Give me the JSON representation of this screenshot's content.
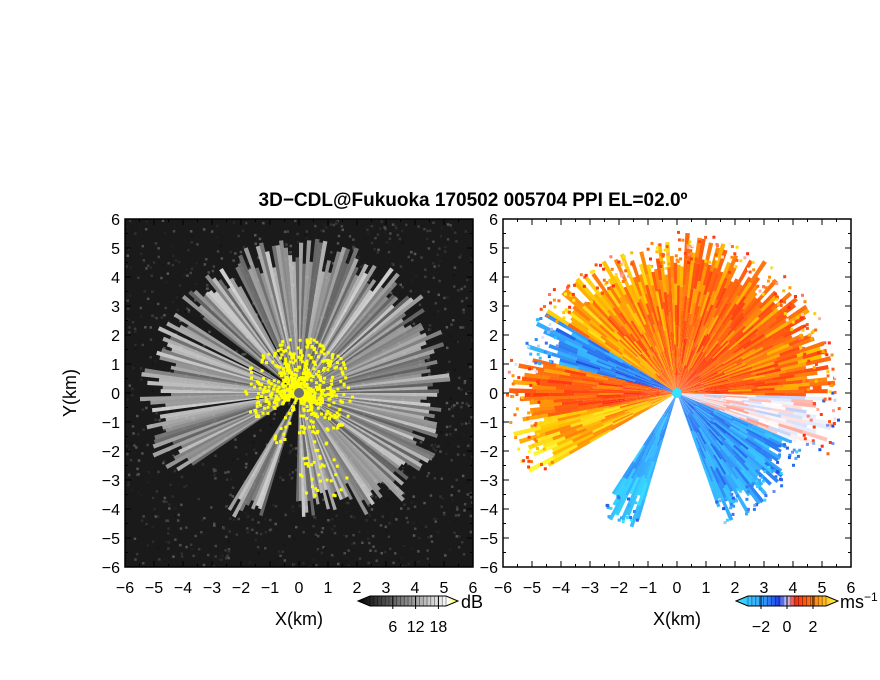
{
  "figure": {
    "title": "3D−CDL@Fukuoka 170502 005704 PPI EL=02.0º"
  },
  "colors": {
    "echo_yellow": "#ffff00",
    "background_left": "#1a1a1a",
    "velocity_negative_dark": "#1f4fe6",
    "velocity_negative_light": "#36b8ff",
    "velocity_zero": "#ffffff",
    "velocity_positive_mid": "#ff6a10",
    "velocity_positive_dark": "#ff2a10",
    "velocity_positive_light": "#ffc800"
  },
  "chart_data": [
    {
      "type": "heatmap",
      "panel": "left",
      "quantity": "reflectivity",
      "xlabel": "X(km)",
      "ylabel": "Y(km)",
      "xlim": [
        -6,
        6
      ],
      "ylim": [
        -6,
        6
      ],
      "xticks": [
        "−6",
        "−5",
        "−4",
        "−3",
        "−2",
        "−1",
        "0",
        "1",
        "2",
        "3",
        "4",
        "5",
        "6"
      ],
      "yticks": [
        "6",
        "5",
        "4",
        "3",
        "2",
        "1",
        "0",
        "−1",
        "−2",
        "−3",
        "−4",
        "−5",
        "−6"
      ],
      "radar_center": [
        0,
        0
      ],
      "colorbar": {
        "unit": "dB",
        "ticks": [
          6,
          12,
          18
        ],
        "tick_labels": [
          "6",
          "12",
          "18"
        ],
        "range": [
          0,
          20
        ],
        "colormap": "gray-to-yellow"
      },
      "sectors": [
        {
          "az_start": 60,
          "az_end": 92,
          "range_km": 5.2
        },
        {
          "az_start": 92,
          "az_end": 150,
          "range_km": 5.0
        },
        {
          "az_start": 150,
          "az_end": 180,
          "range_km": 4.2
        },
        {
          "az_start": 196,
          "az_end": 210,
          "range_km": 4.7
        },
        {
          "az_start": 235,
          "az_end": 260,
          "range_km": 5.3
        },
        {
          "az_start": 262,
          "az_end": 295,
          "range_km": 5.3
        },
        {
          "az_start": 296,
          "az_end": 302,
          "range_km": 5.3
        },
        {
          "az_start": 307,
          "az_end": 330,
          "range_km": 5.0
        },
        {
          "az_start": 332,
          "az_end": 60,
          "range_km": 5.2
        }
      ]
    },
    {
      "type": "heatmap",
      "panel": "right",
      "quantity": "radial velocity",
      "xlabel": "X(km)",
      "ylabel": "",
      "xlim": [
        -6,
        6
      ],
      "ylim": [
        -6,
        6
      ],
      "xticks": [
        "−6",
        "−5",
        "−4",
        "−3",
        "−2",
        "−1",
        "0",
        "1",
        "2",
        "3",
        "4",
        "5",
        "6"
      ],
      "yticks": [
        "6",
        "5",
        "4",
        "3",
        "2",
        "1",
        "0",
        "−1",
        "−2",
        "−3",
        "−4",
        "−5",
        "−6"
      ],
      "radar_center": [
        0,
        0
      ],
      "colorbar": {
        "unit": "ms",
        "unit_exponent": "−1",
        "ticks": [
          -2,
          0,
          2
        ],
        "tick_labels": [
          "−2",
          "0",
          "2"
        ],
        "range": [
          -3,
          3
        ],
        "colormap": "blue-white-orange"
      },
      "sectors": [
        {
          "az_start": 0,
          "az_end": 90,
          "range_km": 5.3,
          "velocity": 1.2
        },
        {
          "az_start": 90,
          "az_end": 112,
          "range_km": 5.4,
          "velocity": 0.1
        },
        {
          "az_start": 112,
          "az_end": 160,
          "range_km": 4.6,
          "velocity": -1.6
        },
        {
          "az_start": 196,
          "az_end": 212,
          "range_km": 4.7,
          "velocity": -2.0
        },
        {
          "az_start": 240,
          "az_end": 258,
          "range_km": 5.6,
          "velocity": 1.9
        },
        {
          "az_start": 258,
          "az_end": 282,
          "range_km": 5.6,
          "velocity": 1.0
        },
        {
          "az_start": 282,
          "az_end": 300,
          "range_km": 5.2,
          "velocity": -1.4
        },
        {
          "az_start": 300,
          "az_end": 315,
          "range_km": 5.3,
          "velocity": 1.6
        },
        {
          "az_start": 315,
          "az_end": 360,
          "range_km": 5.0,
          "velocity": 1.4
        }
      ]
    }
  ]
}
